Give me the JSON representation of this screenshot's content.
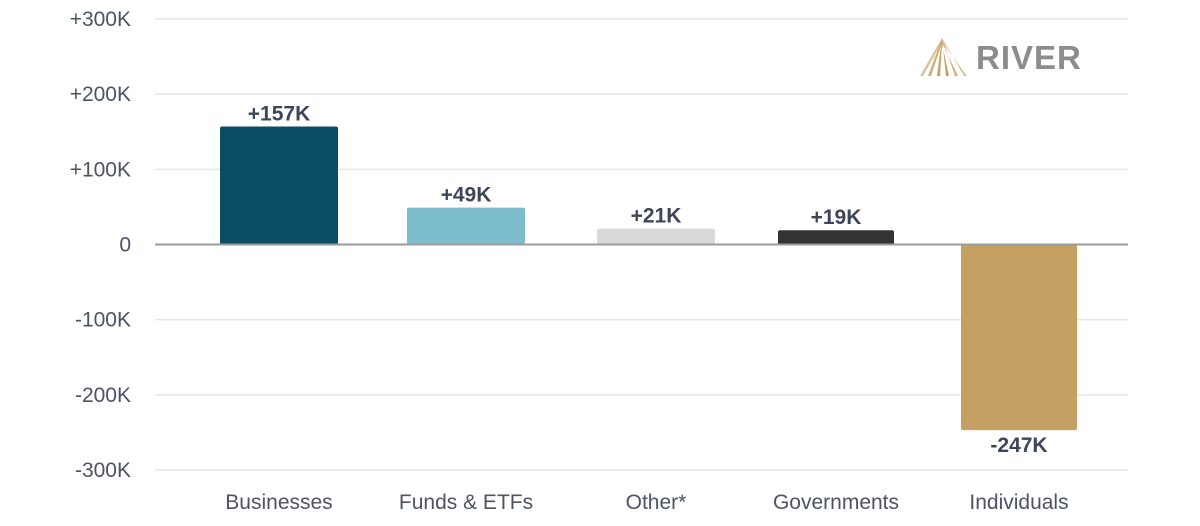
{
  "brand": {
    "name": "RIVER"
  },
  "colors": {
    "grid": "#e6e6e6",
    "zero_line": "#9a9a9a",
    "text": "#4d5366",
    "logo_text": "#8c8c8c",
    "logo_mark": "#c9a870"
  },
  "chart_data": {
    "type": "bar",
    "title": "",
    "xlabel": "",
    "ylabel": "",
    "ylim": [
      -300000,
      300000
    ],
    "yticks": [
      300000,
      200000,
      100000,
      0,
      -100000,
      -200000,
      -300000
    ],
    "ytick_labels": [
      "+300K",
      "+200K",
      "+100K",
      "0",
      "-100K",
      "-200K",
      "-300K"
    ],
    "categories": [
      "Businesses",
      "Funds & ETFs",
      "Other*",
      "Governments",
      "Individuals"
    ],
    "values": [
      157000,
      49000,
      21000,
      19000,
      -247000
    ],
    "labels": [
      "+157K",
      "+49K",
      "+21K",
      "+19K",
      "-247K"
    ],
    "colors": [
      "#0b4d63",
      "#7dbccd",
      "#d9d9d9",
      "#333333",
      "#c4a062"
    ],
    "grid": true
  }
}
